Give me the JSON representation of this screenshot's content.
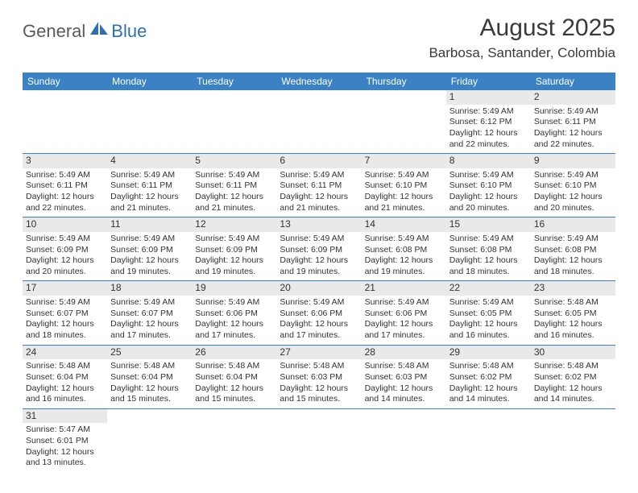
{
  "logo": {
    "general": "General",
    "blue": "Blue"
  },
  "title": "August 2025",
  "location": "Barbosa, Santander, Colombia",
  "colors": {
    "header_bg": "#3a82c4",
    "header_text": "#ffffff",
    "daynum_bg": "#e9e9e9",
    "border": "#3a82c4",
    "logo_general": "#5a5a5a",
    "logo_blue": "#2f6fb0",
    "body_text": "#333333"
  },
  "days_of_week": [
    "Sunday",
    "Monday",
    "Tuesday",
    "Wednesday",
    "Thursday",
    "Friday",
    "Saturday"
  ],
  "leading_blanks": 5,
  "cells": [
    {
      "n": "1",
      "sunrise": "5:49 AM",
      "sunset": "6:12 PM",
      "daylight": "12 hours and 22 minutes."
    },
    {
      "n": "2",
      "sunrise": "5:49 AM",
      "sunset": "6:11 PM",
      "daylight": "12 hours and 22 minutes."
    },
    {
      "n": "3",
      "sunrise": "5:49 AM",
      "sunset": "6:11 PM",
      "daylight": "12 hours and 22 minutes."
    },
    {
      "n": "4",
      "sunrise": "5:49 AM",
      "sunset": "6:11 PM",
      "daylight": "12 hours and 21 minutes."
    },
    {
      "n": "5",
      "sunrise": "5:49 AM",
      "sunset": "6:11 PM",
      "daylight": "12 hours and 21 minutes."
    },
    {
      "n": "6",
      "sunrise": "5:49 AM",
      "sunset": "6:11 PM",
      "daylight": "12 hours and 21 minutes."
    },
    {
      "n": "7",
      "sunrise": "5:49 AM",
      "sunset": "6:10 PM",
      "daylight": "12 hours and 21 minutes."
    },
    {
      "n": "8",
      "sunrise": "5:49 AM",
      "sunset": "6:10 PM",
      "daylight": "12 hours and 20 minutes."
    },
    {
      "n": "9",
      "sunrise": "5:49 AM",
      "sunset": "6:10 PM",
      "daylight": "12 hours and 20 minutes."
    },
    {
      "n": "10",
      "sunrise": "5:49 AM",
      "sunset": "6:09 PM",
      "daylight": "12 hours and 20 minutes."
    },
    {
      "n": "11",
      "sunrise": "5:49 AM",
      "sunset": "6:09 PM",
      "daylight": "12 hours and 19 minutes."
    },
    {
      "n": "12",
      "sunrise": "5:49 AM",
      "sunset": "6:09 PM",
      "daylight": "12 hours and 19 minutes."
    },
    {
      "n": "13",
      "sunrise": "5:49 AM",
      "sunset": "6:09 PM",
      "daylight": "12 hours and 19 minutes."
    },
    {
      "n": "14",
      "sunrise": "5:49 AM",
      "sunset": "6:08 PM",
      "daylight": "12 hours and 19 minutes."
    },
    {
      "n": "15",
      "sunrise": "5:49 AM",
      "sunset": "6:08 PM",
      "daylight": "12 hours and 18 minutes."
    },
    {
      "n": "16",
      "sunrise": "5:49 AM",
      "sunset": "6:08 PM",
      "daylight": "12 hours and 18 minutes."
    },
    {
      "n": "17",
      "sunrise": "5:49 AM",
      "sunset": "6:07 PM",
      "daylight": "12 hours and 18 minutes."
    },
    {
      "n": "18",
      "sunrise": "5:49 AM",
      "sunset": "6:07 PM",
      "daylight": "12 hours and 17 minutes."
    },
    {
      "n": "19",
      "sunrise": "5:49 AM",
      "sunset": "6:06 PM",
      "daylight": "12 hours and 17 minutes."
    },
    {
      "n": "20",
      "sunrise": "5:49 AM",
      "sunset": "6:06 PM",
      "daylight": "12 hours and 17 minutes."
    },
    {
      "n": "21",
      "sunrise": "5:49 AM",
      "sunset": "6:06 PM",
      "daylight": "12 hours and 17 minutes."
    },
    {
      "n": "22",
      "sunrise": "5:49 AM",
      "sunset": "6:05 PM",
      "daylight": "12 hours and 16 minutes."
    },
    {
      "n": "23",
      "sunrise": "5:48 AM",
      "sunset": "6:05 PM",
      "daylight": "12 hours and 16 minutes."
    },
    {
      "n": "24",
      "sunrise": "5:48 AM",
      "sunset": "6:04 PM",
      "daylight": "12 hours and 16 minutes."
    },
    {
      "n": "25",
      "sunrise": "5:48 AM",
      "sunset": "6:04 PM",
      "daylight": "12 hours and 15 minutes."
    },
    {
      "n": "26",
      "sunrise": "5:48 AM",
      "sunset": "6:04 PM",
      "daylight": "12 hours and 15 minutes."
    },
    {
      "n": "27",
      "sunrise": "5:48 AM",
      "sunset": "6:03 PM",
      "daylight": "12 hours and 15 minutes."
    },
    {
      "n": "28",
      "sunrise": "5:48 AM",
      "sunset": "6:03 PM",
      "daylight": "12 hours and 14 minutes."
    },
    {
      "n": "29",
      "sunrise": "5:48 AM",
      "sunset": "6:02 PM",
      "daylight": "12 hours and 14 minutes."
    },
    {
      "n": "30",
      "sunrise": "5:48 AM",
      "sunset": "6:02 PM",
      "daylight": "12 hours and 14 minutes."
    },
    {
      "n": "31",
      "sunrise": "5:47 AM",
      "sunset": "6:01 PM",
      "daylight": "12 hours and 13 minutes."
    }
  ],
  "labels": {
    "sunrise": "Sunrise:",
    "sunset": "Sunset:",
    "daylight": "Daylight:"
  }
}
